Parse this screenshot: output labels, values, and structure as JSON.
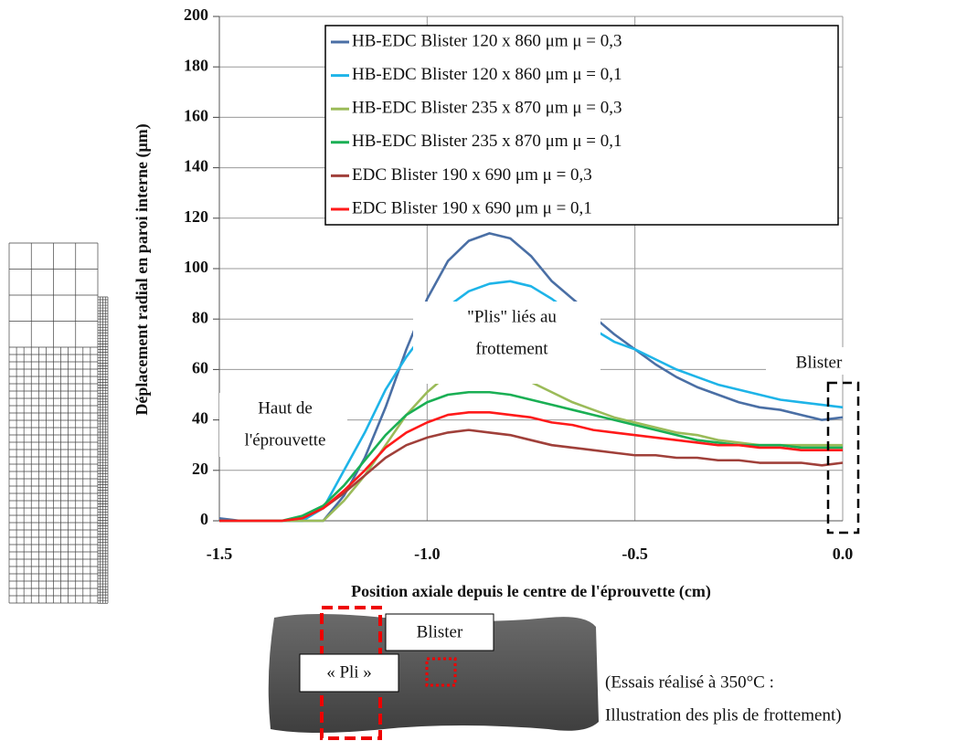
{
  "chart_data": {
    "type": "line",
    "y_label": "Déplacement radial en paroi interne (μm)",
    "x_label": "Position axiale depuis le centre de l'éprouvette (cm)",
    "x": [
      -1.5,
      -1.45,
      -1.4,
      -1.35,
      -1.3,
      -1.25,
      -1.2,
      -1.15,
      -1.1,
      -1.05,
      -1.0,
      -0.95,
      -0.9,
      -0.85,
      -0.8,
      -0.75,
      -0.7,
      -0.65,
      -0.6,
      -0.55,
      -0.5,
      -0.45,
      -0.4,
      -0.35,
      -0.3,
      -0.25,
      -0.2,
      -0.15,
      -0.1,
      -0.05,
      0.0
    ],
    "series": [
      {
        "name": "HB-EDC Blister 120 x 860 μm μ = 0,3",
        "color": "#4a6fa5",
        "values": [
          1,
          0,
          0,
          0,
          0,
          0,
          10,
          25,
          45,
          68,
          88,
          103,
          111,
          114,
          112,
          105,
          95,
          88,
          81,
          74,
          68,
          62,
          57,
          53,
          50,
          47,
          45,
          44,
          42,
          40,
          41
        ]
      },
      {
        "name": "HB-EDC Blister 120 x 860 μm μ = 0,1",
        "color": "#1eb4e8",
        "values": [
          0,
          0,
          0,
          0,
          0,
          5,
          20,
          35,
          52,
          65,
          76,
          85,
          91,
          94,
          95,
          93,
          88,
          82,
          76,
          71,
          68,
          64,
          60,
          57,
          54,
          52,
          50,
          48,
          47,
          46,
          45
        ]
      },
      {
        "name": "HB-EDC Blister 235 x 870 μm μ = 0,3",
        "color": "#9bbb59",
        "values": [
          0,
          0,
          0,
          0,
          0,
          0,
          8,
          18,
          30,
          42,
          51,
          58,
          61,
          61,
          59,
          55,
          51,
          47,
          44,
          41,
          39,
          37,
          35,
          34,
          32,
          31,
          30,
          30,
          30,
          30,
          30
        ]
      },
      {
        "name": "HB-EDC Blister 235 x 870 μm μ = 0,1",
        "color": "#1aaf54",
        "values": [
          0,
          0,
          0,
          0,
          2,
          6,
          14,
          24,
          34,
          42,
          47,
          50,
          51,
          51,
          50,
          48,
          46,
          44,
          42,
          40,
          38,
          36,
          34,
          32,
          31,
          30,
          30,
          30,
          29,
          29,
          29
        ]
      },
      {
        "name": "EDC Blister 190 x 690 μm μ = 0,3",
        "color": "#a0403a",
        "values": [
          0,
          0,
          0,
          0,
          1,
          5,
          11,
          18,
          25,
          30,
          33,
          35,
          36,
          35,
          34,
          32,
          30,
          29,
          28,
          27,
          26,
          26,
          25,
          25,
          24,
          24,
          23,
          23,
          23,
          22,
          23
        ]
      },
      {
        "name": "EDC Blister 190 x 690 μm μ = 0,1",
        "color": "#ff1a1a",
        "values": [
          0,
          0,
          0,
          0,
          1,
          5,
          12,
          20,
          29,
          35,
          39,
          42,
          43,
          43,
          42,
          41,
          39,
          38,
          36,
          35,
          34,
          33,
          32,
          31,
          30,
          30,
          29,
          29,
          28,
          28,
          28
        ]
      }
    ],
    "xlim": [
      -1.5,
      0.0
    ],
    "xticks": [
      -1.5,
      {
        "value": -1.0,
        "label": "-1.0"
      },
      -0.5,
      {
        "value": 0.0,
        "label": "0.0"
      }
    ],
    "ylim": [
      0,
      200
    ],
    "yticks": [
      0,
      20,
      40,
      60,
      80,
      100,
      120,
      140,
      160,
      180,
      200
    ],
    "grid": true,
    "legend": "top-right",
    "annotations": [
      [
        "\"Plis\" liés au",
        "frottement"
      ],
      [
        "Haut de",
        "l'éprouvette"
      ],
      [
        "Blister"
      ]
    ]
  },
  "figure": {
    "photo_labels": [
      "Blister",
      "« Pli »"
    ],
    "caption": [
      "(Essais réalisé à 350°C :",
      "Illustration des plis de frottement)"
    ]
  }
}
